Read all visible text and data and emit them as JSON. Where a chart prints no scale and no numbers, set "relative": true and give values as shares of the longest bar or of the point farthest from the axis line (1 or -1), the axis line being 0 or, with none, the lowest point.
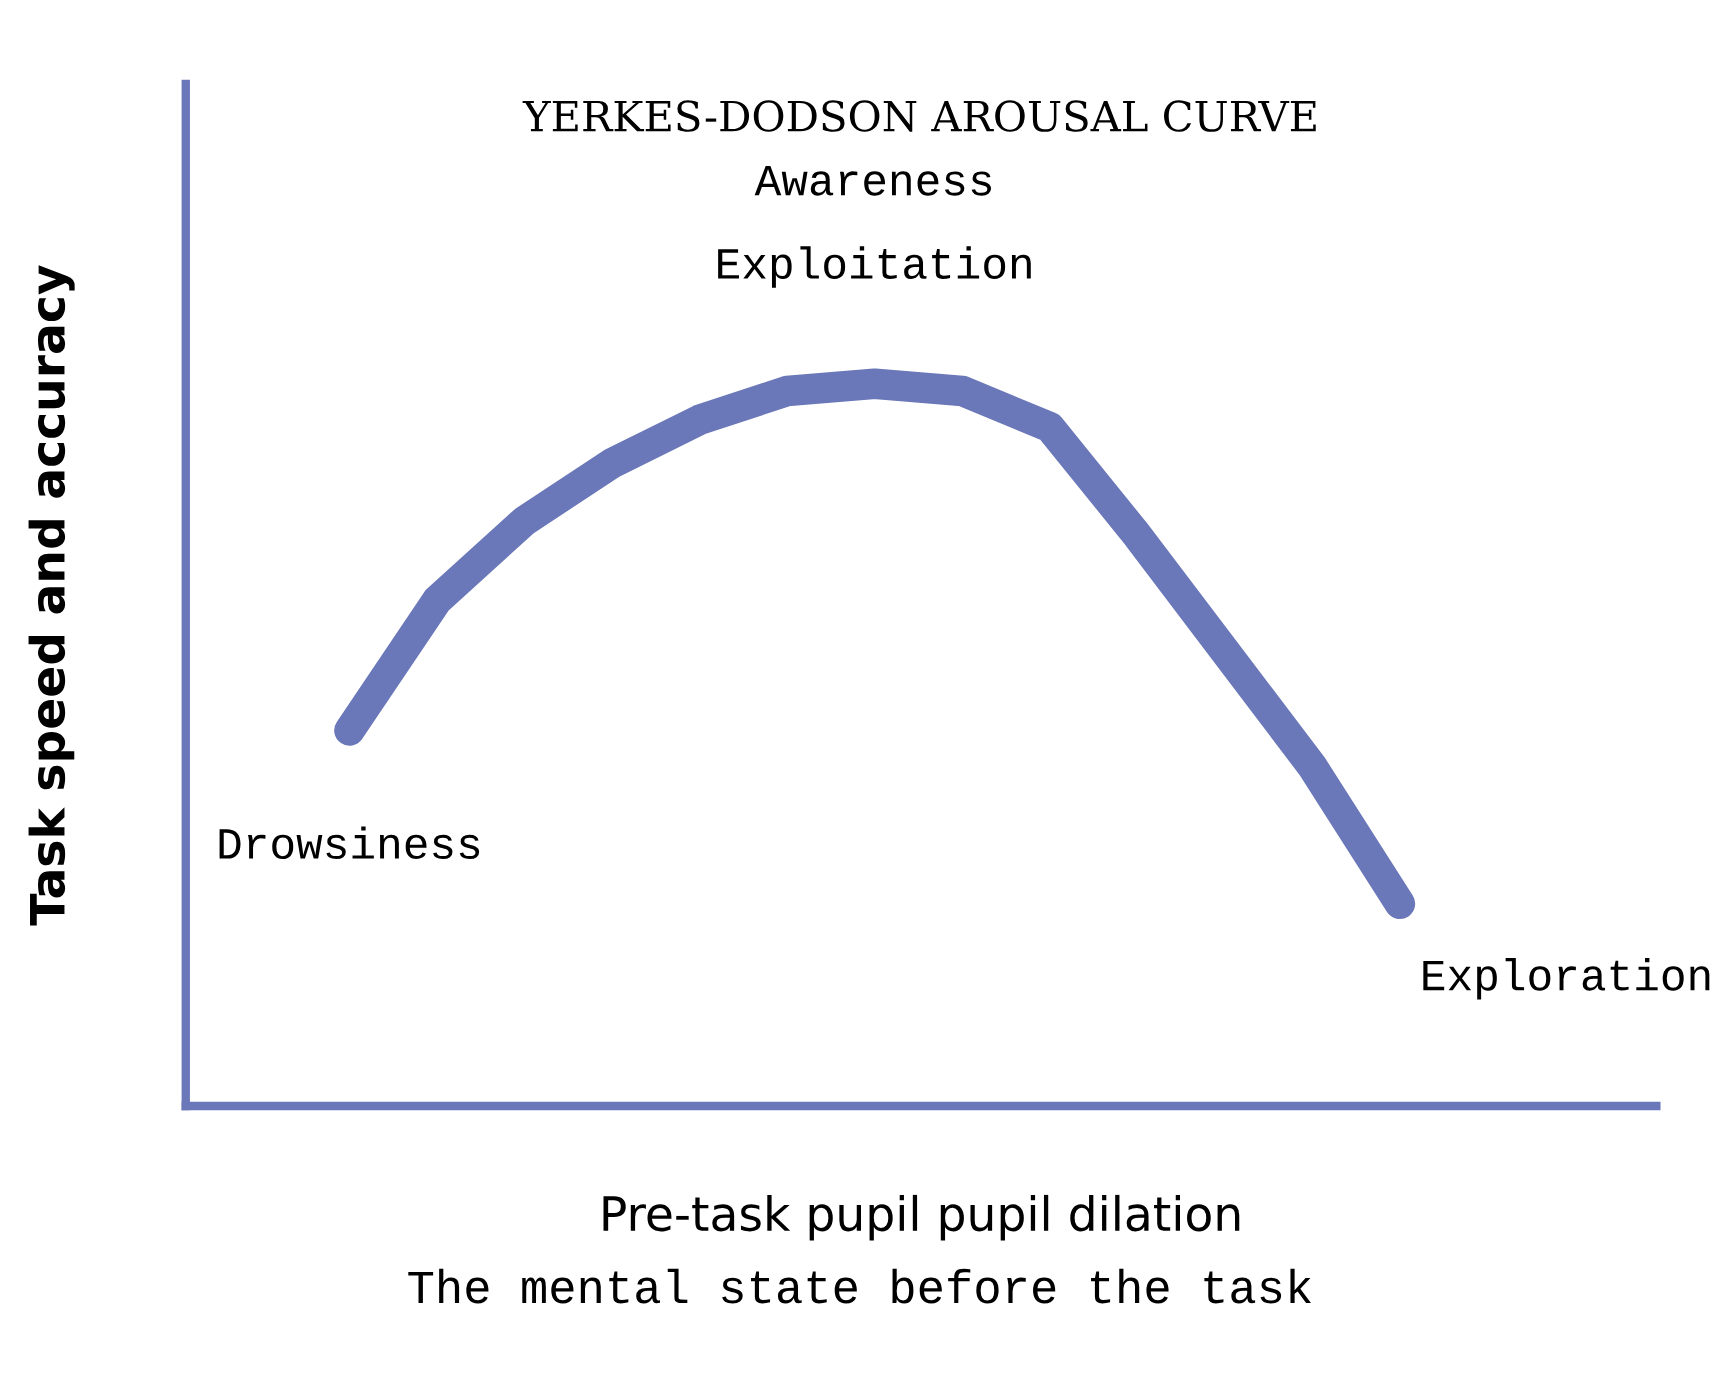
{
  "chart_data": {
    "type": "line",
    "title": "YERKES-DODSON AROUSAL CURVE",
    "xlabel": "Pre-task pupil pupil dilation",
    "ylabel": "Task speed and accuracy",
    "relative": true,
    "categories": [
      null,
      null,
      null,
      null,
      null,
      null,
      null,
      null,
      null,
      null,
      null,
      null,
      null
    ],
    "series": [
      {
        "color": "#6a77b8",
        "values": [
          0.52,
          0.7,
          0.81,
          0.89,
          0.95,
          0.99,
          1.0,
          0.99,
          0.94,
          0.79,
          0.63,
          0.47,
          0.28
        ]
      }
    ],
    "annotations": [
      "Awareness",
      "Exploitation",
      "Drowsiness",
      "Exploration",
      "The mental state before the task"
    ],
    "legend": false,
    "line_style": "solid"
  }
}
